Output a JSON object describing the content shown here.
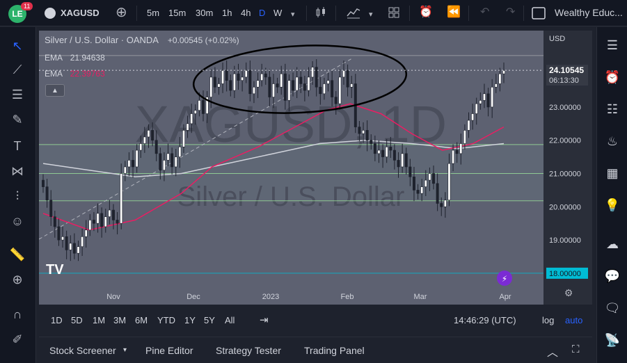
{
  "topbar": {
    "logo_text": "LE",
    "notif_count": "11",
    "symbol": "XAGUSD",
    "intervals": [
      "5m",
      "15m",
      "30m",
      "1h",
      "4h",
      "D",
      "W"
    ],
    "active_interval": "D",
    "user": "Wealthy Educ..."
  },
  "legend": {
    "title": "Silver / U.S. Dollar · OANDA",
    "change": "+0.00545 (+0.02%)",
    "ema1_label": "EMA",
    "ema1_value": "21.94638",
    "ema2_label": "EMA",
    "ema2_value": "22.39763"
  },
  "watermark": {
    "symbol": "XAGUSD, 1D",
    "name": "Silver / U.S. Dollar"
  },
  "price_axis": {
    "currency": "USD",
    "last_price": "24.10545",
    "countdown": "06:13:30",
    "level_label": "18.00000"
  },
  "bottom": {
    "ranges": [
      "1D",
      "5D",
      "1M",
      "3M",
      "6M",
      "YTD",
      "1Y",
      "5Y",
      "All"
    ],
    "clock": "14:46:29 (UTC)",
    "log": "log",
    "auto": "auto"
  },
  "panels": [
    "Stock Screener",
    "Pine Editor",
    "Strategy Tester",
    "Trading Panel"
  ],
  "colors": {
    "bg": "#5c6070",
    "up": "#ffffff",
    "down": "#1e222d",
    "ema_fast": "#e91e63",
    "ema_slow": "#d1d4dc",
    "hline": "#9be29b",
    "support": "#00bcd4"
  },
  "chart_data": {
    "type": "candlestick",
    "title": "Silver / U.S. Dollar",
    "x_ticks": [
      "Nov",
      "Dec",
      "2023",
      "Feb",
      "Mar",
      "Apr"
    ],
    "y_ticks": [
      19,
      20,
      21,
      22,
      23
    ],
    "ylim": [
      17.6,
      25.3
    ],
    "last_price": 24.10545,
    "horizontal_lines": [
      21.87,
      21.0,
      20.18,
      18.0
    ],
    "zone": [
      20.18,
      21.87
    ],
    "ema_fast": [
      [
        0,
        19.8
      ],
      [
        15,
        19.3
      ],
      [
        30,
        19.6
      ],
      [
        45,
        20.4
      ],
      [
        55,
        21.2
      ],
      [
        70,
        21.8
      ],
      [
        80,
        22.3
      ],
      [
        92,
        22.9
      ],
      [
        100,
        23.1
      ],
      [
        110,
        22.8
      ],
      [
        120,
        22.2
      ],
      [
        130,
        21.7
      ],
      [
        140,
        21.9
      ],
      [
        150,
        22.4
      ]
    ],
    "ema_slow": [
      [
        0,
        21.3
      ],
      [
        15,
        21.1
      ],
      [
        30,
        20.9
      ],
      [
        45,
        21.0
      ],
      [
        60,
        21.3
      ],
      [
        75,
        21.6
      ],
      [
        90,
        21.9
      ],
      [
        105,
        22.0
      ],
      [
        120,
        21.9
      ],
      [
        135,
        21.75
      ],
      [
        150,
        21.9
      ]
    ],
    "candles_close": [
      20.6,
      20.2,
      19.7,
      19.4,
      19.0,
      19.1,
      18.7,
      18.9,
      18.6,
      18.8,
      19.1,
      19.3,
      19.6,
      19.5,
      19.8,
      19.4,
      19.7,
      19.9,
      19.6,
      19.5,
      21.0,
      21.2,
      21.4,
      21.2,
      21.7,
      21.9,
      22.1,
      22.3,
      22.0,
      21.6,
      21.1,
      21.4,
      21.6,
      21.2,
      21.5,
      21.8,
      22.3,
      22.5,
      22.8,
      22.9,
      23.2,
      22.8,
      23.3,
      23.9,
      23.6,
      23.7,
      24.1,
      23.8,
      23.5,
      24.0,
      23.8,
      23.9,
      24.1,
      23.4,
      23.6,
      23.8,
      24.0,
      23.9,
      23.3,
      23.7,
      23.6,
      24.0,
      23.2,
      23.8,
      23.5,
      23.9,
      23.7,
      23.5,
      23.9,
      24.2,
      23.6,
      23.4,
      23.7,
      23.8,
      23.3,
      23.1,
      23.9,
      24.1,
      23.6,
      23.7,
      22.4,
      22.2,
      22.3,
      22.0,
      21.9,
      21.6,
      21.7,
      21.5,
      21.8,
      21.7,
      21.4,
      21.2,
      21.6,
      21.2,
      20.9,
      20.5,
      20.4,
      20.6,
      20.8,
      21.0,
      20.7,
      20.1,
      20.0,
      20.2,
      21.3,
      21.7,
      21.6,
      21.9,
      22.3,
      22.6,
      22.8,
      23.1,
      23.2,
      23.4,
      23.0,
      23.6,
      23.7,
      24.0,
      24.1
    ]
  }
}
